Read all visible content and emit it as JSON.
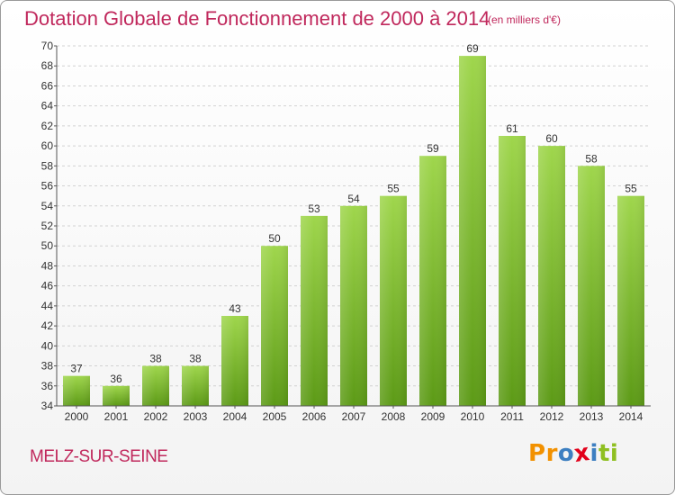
{
  "header": {
    "title": "Dotation Globale de Fonctionnement de 2000 à 2014",
    "unit": "(en milliers d'€)"
  },
  "footer": {
    "commune": "MELZ-SUR-SEINE",
    "logo": "Proxiti"
  },
  "colors": {
    "accent": "#c0285c",
    "bar_top": "#9fd64c",
    "bar_bottom": "#5c9a16",
    "logo_letters": [
      "#f29100",
      "#f29100",
      "#3d7fc1",
      "#e2001a",
      "#3d7fc1",
      "#8fbf21",
      "#8fbf21"
    ]
  },
  "chart_data": {
    "type": "bar",
    "categories": [
      "2000",
      "2001",
      "2002",
      "2003",
      "2004",
      "2005",
      "2006",
      "2007",
      "2008",
      "2009",
      "2010",
      "2011",
      "2012",
      "2013",
      "2014"
    ],
    "values": [
      37,
      36,
      38,
      38,
      43,
      50,
      53,
      54,
      55,
      59,
      69,
      61,
      60,
      58,
      55
    ],
    "title": "Dotation Globale de Fonctionnement de 2000 à 2014",
    "ylim": [
      34,
      70
    ],
    "yticks": [
      34,
      36,
      38,
      40,
      42,
      44,
      46,
      48,
      50,
      52,
      54,
      56,
      58,
      60,
      62,
      64,
      66,
      68,
      70
    ],
    "grid": true,
    "data_labels": true
  }
}
